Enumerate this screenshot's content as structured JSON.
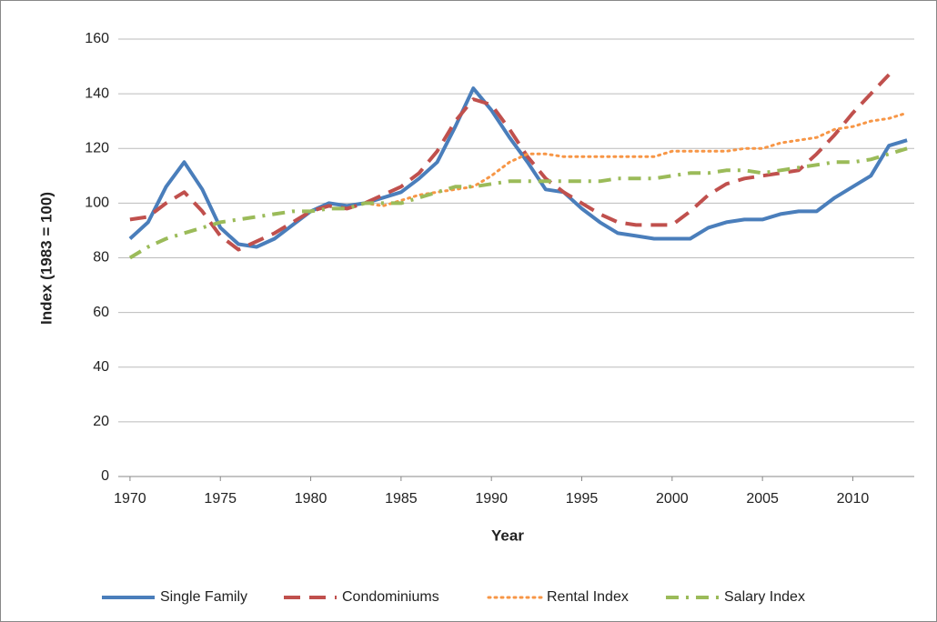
{
  "chart_data": {
    "type": "line",
    "x_label": "Year",
    "y_label": "Index (1983 = 100)",
    "x": [
      1970,
      1971,
      1972,
      1973,
      1974,
      1975,
      1976,
      1977,
      1978,
      1979,
      1980,
      1981,
      1982,
      1983,
      1984,
      1985,
      1986,
      1987,
      1988,
      1989,
      1990,
      1991,
      1992,
      1993,
      1994,
      1995,
      1996,
      1997,
      1998,
      1999,
      2000,
      2001,
      2002,
      2003,
      2004,
      2005,
      2006,
      2007,
      2008,
      2009,
      2010,
      2011,
      2012,
      2013
    ],
    "xlim": [
      1969.35,
      2013.4
    ],
    "xticks": [
      1970,
      1975,
      1980,
      1985,
      1990,
      1995,
      2000,
      2005,
      2010
    ],
    "ylim": [
      0,
      160
    ],
    "yticks": [
      0,
      20,
      40,
      60,
      80,
      100,
      120,
      140,
      160
    ],
    "grid": true,
    "legend": "bottom",
    "series": [
      {
        "name": "Single Family",
        "color": "#4a7ebb",
        "dash": "solid",
        "values": [
          87,
          93,
          106,
          115,
          105,
          91,
          85,
          84,
          87,
          92,
          97,
          100,
          99,
          100,
          102,
          104,
          109,
          115,
          128,
          142,
          134,
          124,
          115,
          105,
          104,
          98,
          93,
          89,
          88,
          87,
          87,
          87,
          91,
          93,
          94,
          94,
          96,
          97,
          97,
          102,
          106,
          110,
          121,
          123
        ]
      },
      {
        "name": "Condominiums",
        "color": "#c0504d",
        "dash": "dashed",
        "values": [
          94,
          95,
          100,
          104,
          97,
          88,
          83,
          86,
          89,
          93,
          97,
          99,
          98,
          100,
          103,
          106,
          111,
          119,
          130,
          138,
          136,
          127,
          117,
          109,
          104,
          100,
          96,
          93,
          92,
          92,
          92,
          97,
          103,
          107,
          109,
          110,
          111,
          112,
          118,
          125,
          133,
          140,
          147,
          null
        ]
      },
      {
        "name": "Rental Index",
        "color": "#f79646",
        "dash": "dotted",
        "values": [
          null,
          null,
          null,
          null,
          null,
          null,
          null,
          null,
          null,
          null,
          null,
          null,
          null,
          100,
          99,
          101,
          103,
          104,
          105,
          106,
          110,
          115,
          118,
          118,
          117,
          117,
          117,
          117,
          117,
          117,
          119,
          119,
          119,
          119,
          120,
          120,
          122,
          123,
          124,
          127,
          128,
          130,
          131,
          133
        ]
      },
      {
        "name": "Salary Index",
        "color": "#9bbb59",
        "dash": "dashdot",
        "values": [
          80,
          84,
          87,
          89,
          91,
          93,
          94,
          95,
          96,
          97,
          97,
          98,
          98,
          100,
          100,
          100,
          102,
          104,
          106,
          106,
          107,
          108,
          108,
          108,
          108,
          108,
          108,
          109,
          109,
          109,
          110,
          111,
          111,
          112,
          112,
          111,
          112,
          113,
          114,
          115,
          115,
          116,
          118,
          120
        ]
      }
    ]
  }
}
